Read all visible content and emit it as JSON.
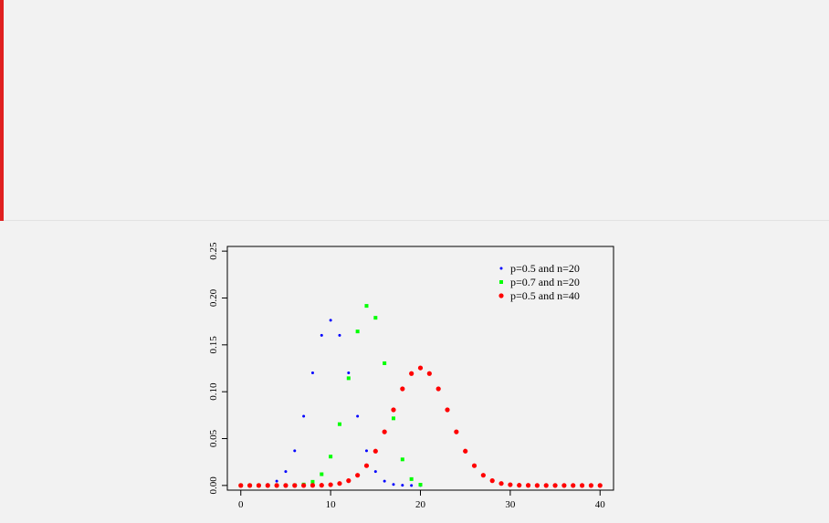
{
  "page": {
    "accent_color": "#e02020",
    "background": "#f2f2f2"
  },
  "chart_data": {
    "type": "scatter",
    "title": "",
    "xlabel": "",
    "ylabel": "",
    "xlim": [
      -1.5,
      41.5
    ],
    "ylim": [
      -0.005,
      0.255
    ],
    "x_ticks": [
      0,
      10,
      20,
      30,
      40
    ],
    "y_ticks": [
      0.0,
      0.05,
      0.1,
      0.15,
      0.2,
      0.25
    ],
    "y_tick_labels": [
      "0.00",
      "0.05",
      "0.10",
      "0.15",
      "0.20",
      "0.25"
    ],
    "grid": false,
    "legend_position": "top-right",
    "series": [
      {
        "name": "p=0.5 and n=20",
        "color": "#0000ff",
        "marker": "small-dot",
        "x": [
          0,
          1,
          2,
          3,
          4,
          5,
          6,
          7,
          8,
          9,
          10,
          11,
          12,
          13,
          14,
          15,
          16,
          17,
          18,
          19,
          20
        ],
        "y": [
          0.0,
          0.0,
          0.0002,
          0.0011,
          0.0046,
          0.0148,
          0.037,
          0.0739,
          0.1201,
          0.1602,
          0.1762,
          0.1602,
          0.1201,
          0.0739,
          0.037,
          0.0148,
          0.0046,
          0.0011,
          0.0002,
          0.0,
          0.0
        ]
      },
      {
        "name": "p=0.7 and n=20",
        "color": "#00ff00",
        "marker": "square",
        "x": [
          0,
          1,
          2,
          3,
          4,
          5,
          6,
          7,
          8,
          9,
          10,
          11,
          12,
          13,
          14,
          15,
          16,
          17,
          18,
          19,
          20
        ],
        "y": [
          0.0,
          0.0,
          0.0,
          0.0,
          0.0,
          0.0,
          0.0002,
          0.001,
          0.0039,
          0.012,
          0.0308,
          0.0654,
          0.1144,
          0.1643,
          0.1916,
          0.1789,
          0.1304,
          0.0716,
          0.0278,
          0.0068,
          0.0008
        ]
      },
      {
        "name": "p=0.5 and n=40",
        "color": "#ff0000",
        "marker": "dot",
        "x": [
          0,
          1,
          2,
          3,
          4,
          5,
          6,
          7,
          8,
          9,
          10,
          11,
          12,
          13,
          14,
          15,
          16,
          17,
          18,
          19,
          20,
          21,
          22,
          23,
          24,
          25,
          26,
          27,
          28,
          29,
          30,
          31,
          32,
          33,
          34,
          35,
          36,
          37,
          38,
          39,
          40
        ],
        "y": [
          0.0,
          0.0,
          0.0,
          0.0,
          0.0,
          0.0,
          0.0,
          0.0,
          0.0001,
          0.0002,
          0.0008,
          0.0021,
          0.0051,
          0.0109,
          0.0211,
          0.0366,
          0.0572,
          0.0807,
          0.1031,
          0.1194,
          0.1254,
          0.1194,
          0.1031,
          0.0807,
          0.0572,
          0.0366,
          0.0211,
          0.0109,
          0.0051,
          0.0021,
          0.0008,
          0.0002,
          0.0001,
          0.0,
          0.0,
          0.0,
          0.0,
          0.0,
          0.0,
          0.0,
          0.0
        ]
      }
    ]
  }
}
